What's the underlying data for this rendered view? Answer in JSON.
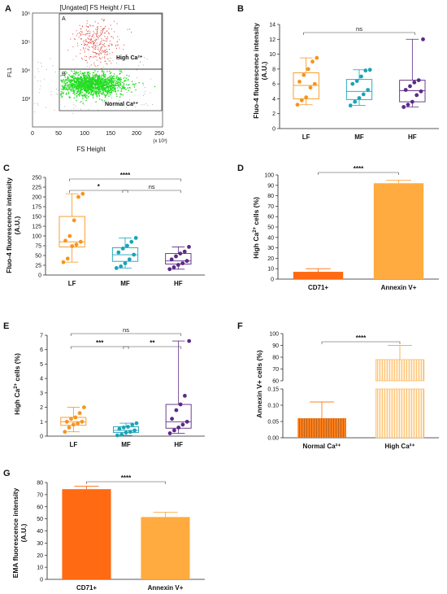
{
  "colors": {
    "lf": "#f7941d",
    "mf": "#1aa3b8",
    "hf": "#5b2a86",
    "cd71": "#ff6a13",
    "annexin": "#ffab40",
    "normal": "#ff7f1a",
    "high": "#ffab40",
    "scatter_high": "#e0453a",
    "scatter_normal": "#22dd22"
  },
  "chart_data": [
    {
      "panel": "A",
      "type": "scatter",
      "title": "[Ungated] FS Height / FL1",
      "xlabel": "FS Height",
      "ylabel": "FL1",
      "x_scale_note": "(x 10³)",
      "xticks": [
        "0",
        "50",
        "100",
        "150",
        "200",
        "250"
      ],
      "yticks": [
        "10³",
        "10⁴",
        "10⁵",
        "10⁶"
      ],
      "y_scale": "log",
      "gates": [
        "A",
        "B"
      ],
      "populations": [
        {
          "name": "High Ca²⁺",
          "color": "#e0453a",
          "center_x": 125,
          "center_fl1": 60000
        },
        {
          "name": "Normal Ca²⁺",
          "color": "#22dd22",
          "center_x": 115,
          "center_fl1": 3000
        }
      ]
    },
    {
      "panel": "B",
      "type": "box",
      "categories": [
        "LF",
        "MF",
        "HF"
      ],
      "ylabel": "Fluo-4 fluorescence intensity (A.U.)",
      "ylim": [
        0,
        14
      ],
      "yticks": [
        0,
        2,
        4,
        6,
        8,
        10,
        12,
        14
      ],
      "boxes": [
        {
          "name": "LF",
          "min": 3.2,
          "q1": 4.0,
          "median": 5.8,
          "q3": 7.5,
          "max": 9.5,
          "points": [
            3.2,
            3.8,
            4.2,
            5.5,
            6.0,
            6.3,
            7.2,
            8.0,
            9.0,
            9.5
          ]
        },
        {
          "name": "MF",
          "min": 3.1,
          "q1": 3.9,
          "median": 5.0,
          "q3": 6.6,
          "max": 7.9,
          "points": [
            3.1,
            3.6,
            4.1,
            4.6,
            5.2,
            6.0,
            6.4,
            7.0,
            7.8,
            7.9
          ]
        },
        {
          "name": "HF",
          "min": 2.9,
          "q1": 3.6,
          "median": 5.1,
          "q3": 6.5,
          "max": 12.0,
          "points": [
            2.9,
            3.2,
            3.6,
            4.5,
            5.0,
            5.2,
            5.7,
            6.2,
            6.5,
            12.0
          ]
        }
      ],
      "comparisons": [
        {
          "from": "LF",
          "to": "HF",
          "label": "ns"
        }
      ]
    },
    {
      "panel": "C",
      "type": "box",
      "categories": [
        "LF",
        "MF",
        "HF"
      ],
      "ylabel": "Fluo-4 fluorescence intensity (A.U.)",
      "ylim": [
        0,
        250
      ],
      "yticks": [
        0,
        25,
        50,
        75,
        100,
        125,
        150,
        175,
        200,
        225,
        250
      ],
      "boxes": [
        {
          "name": "LF",
          "min": 33,
          "q1": 72,
          "median": 85,
          "q3": 150,
          "max": 208,
          "points": [
            33,
            42,
            74,
            78,
            85,
            88,
            100,
            140,
            200,
            208
          ]
        },
        {
          "name": "MF",
          "min": 18,
          "q1": 35,
          "median": 52,
          "q3": 70,
          "max": 95,
          "points": [
            18,
            22,
            30,
            40,
            52,
            58,
            68,
            75,
            85,
            95
          ]
        },
        {
          "name": "HF",
          "min": 15,
          "q1": 28,
          "median": 36,
          "q3": 55,
          "max": 72,
          "points": [
            15,
            20,
            26,
            30,
            36,
            40,
            48,
            55,
            60,
            72
          ]
        }
      ],
      "comparisons": [
        {
          "from": "LF",
          "to": "HF",
          "label": "****"
        },
        {
          "from": "LF",
          "to": "MF",
          "label": "*"
        },
        {
          "from": "MF",
          "to": "HF",
          "label": "ns"
        }
      ]
    },
    {
      "panel": "D",
      "type": "bar",
      "categories": [
        "CD71+",
        "Annexin V+"
      ],
      "values": [
        7,
        92
      ],
      "errors": [
        3,
        3
      ],
      "ylabel": "High Ca²⁺ cells (%)",
      "ylim": [
        0,
        100
      ],
      "yticks": [
        0,
        10,
        20,
        30,
        40,
        50,
        60,
        70,
        80,
        90,
        100
      ],
      "comparisons": [
        {
          "from": "CD71+",
          "to": "Annexin V+",
          "label": "****"
        }
      ]
    },
    {
      "panel": "E",
      "type": "box",
      "categories": [
        "LF",
        "MF",
        "HF"
      ],
      "ylabel": "High Ca²⁺ cells (%)",
      "ylim": [
        0,
        7
      ],
      "yticks": [
        0,
        1,
        2,
        3,
        4,
        5,
        6,
        7
      ],
      "boxes": [
        {
          "name": "LF",
          "min": 0.3,
          "q1": 0.75,
          "median": 1.0,
          "q3": 1.3,
          "max": 2.0,
          "points": [
            0.3,
            0.6,
            0.8,
            0.9,
            1.0,
            1.0,
            1.2,
            1.3,
            1.6,
            2.0
          ]
        },
        {
          "name": "MF",
          "min": 0.05,
          "q1": 0.25,
          "median": 0.4,
          "q3": 0.65,
          "max": 0.9,
          "points": [
            0.05,
            0.1,
            0.25,
            0.3,
            0.4,
            0.5,
            0.6,
            0.65,
            0.8,
            0.9
          ]
        },
        {
          "name": "HF",
          "min": 0.2,
          "q1": 0.55,
          "median": 1.0,
          "q3": 2.2,
          "max": 6.6,
          "points": [
            0.2,
            0.4,
            0.6,
            0.8,
            1.0,
            1.2,
            1.8,
            2.2,
            2.8,
            6.6
          ]
        }
      ],
      "comparisons": [
        {
          "from": "LF",
          "to": "HF",
          "label": "ns"
        },
        {
          "from": "LF",
          "to": "MF",
          "label": "***"
        },
        {
          "from": "MF",
          "to": "HF",
          "label": "**"
        }
      ]
    },
    {
      "panel": "F",
      "type": "bar",
      "categories": [
        "Normal Ca²⁺",
        "High Ca²⁺"
      ],
      "values": [
        0.06,
        78
      ],
      "errors": [
        0.05,
        12
      ],
      "ylabel": "Annexin V+ cells (%)",
      "broken_axis": true,
      "upper_ylim": [
        60,
        100
      ],
      "upper_yticks": [
        60,
        70,
        80,
        90,
        100
      ],
      "lower_ylim": [
        0,
        0.15
      ],
      "lower_yticks": [
        "0.00",
        "0.05",
        "0.10",
        "0.15"
      ],
      "comparisons": [
        {
          "from": "Normal Ca²⁺",
          "to": "High Ca²⁺",
          "label": "****"
        }
      ]
    },
    {
      "panel": "G",
      "type": "bar",
      "categories": [
        "CD71+",
        "Annexin V+"
      ],
      "values": [
        74.5,
        51.5
      ],
      "errors": [
        2.5,
        4
      ],
      "ylabel": "EMA fluorescence intensity (A.U.)",
      "ylim": [
        0,
        80
      ],
      "yticks": [
        0,
        10,
        20,
        30,
        40,
        50,
        60,
        70,
        80
      ],
      "comparisons": [
        {
          "from": "CD71+",
          "to": "Annexin V+",
          "label": "****"
        }
      ]
    }
  ]
}
